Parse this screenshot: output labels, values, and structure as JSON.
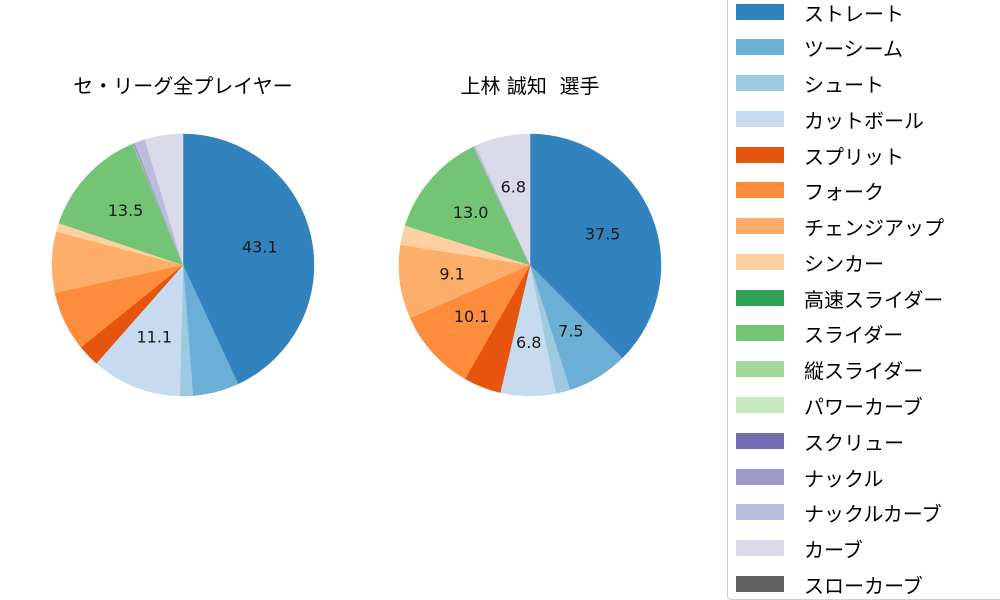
{
  "chart_data": [
    {
      "type": "pie",
      "title": "セ・リーグ全プレイヤー",
      "start_angle_deg": 90,
      "direction": "clockwise",
      "center": [
        183,
        265
      ],
      "radius": 131,
      "slices": [
        {
          "name": "ストレート",
          "value": 43.1,
          "label": "43.1"
        },
        {
          "name": "ツーシーム",
          "value": 5.7,
          "label": null
        },
        {
          "name": "シュート",
          "value": 1.6,
          "label": null
        },
        {
          "name": "カットボール",
          "value": 11.1,
          "label": "11.1"
        },
        {
          "name": "スプリット",
          "value": 2.7,
          "label": null
        },
        {
          "name": "フォーク",
          "value": 7.4,
          "label": null
        },
        {
          "name": "チェンジアップ",
          "value": 7.5,
          "label": null
        },
        {
          "name": "シンカー",
          "value": 1.1,
          "label": null
        },
        {
          "name": "高速スライダー",
          "value": 0.0,
          "label": null
        },
        {
          "name": "スライダー",
          "value": 13.5,
          "label": "13.5"
        },
        {
          "name": "縦スライダー",
          "value": 0.1,
          "label": null
        },
        {
          "name": "パワーカーブ",
          "value": 0.0,
          "label": null
        },
        {
          "name": "スクリュー",
          "value": 0.0,
          "label": null
        },
        {
          "name": "ナックル",
          "value": 0.2,
          "label": null
        },
        {
          "name": "ナックルカーブ",
          "value": 1.3,
          "label": null
        },
        {
          "name": "カーブ",
          "value": 4.7,
          "label": null
        },
        {
          "name": "スローカーブ",
          "value": 0.0,
          "label": null
        }
      ]
    },
    {
      "type": "pie",
      "title": "上林 誠知  選手",
      "start_angle_deg": 90,
      "direction": "clockwise",
      "center": [
        530,
        265
      ],
      "radius": 131,
      "slices": [
        {
          "name": "ストレート",
          "value": 37.5,
          "label": "37.5"
        },
        {
          "name": "ツーシーム",
          "value": 7.5,
          "label": "7.5"
        },
        {
          "name": "シュート",
          "value": 1.8,
          "label": null
        },
        {
          "name": "カットボール",
          "value": 6.8,
          "label": "6.8"
        },
        {
          "name": "スプリット",
          "value": 4.6,
          "label": null
        },
        {
          "name": "フォーク",
          "value": 10.1,
          "label": "10.1"
        },
        {
          "name": "チェンジアップ",
          "value": 9.1,
          "label": "9.1"
        },
        {
          "name": "シンカー",
          "value": 2.4,
          "label": null
        },
        {
          "name": "高速スライダー",
          "value": 0.0,
          "label": null
        },
        {
          "name": "スライダー",
          "value": 13.0,
          "label": "13.0"
        },
        {
          "name": "縦スライダー",
          "value": 0.0,
          "label": null
        },
        {
          "name": "パワーカーブ",
          "value": 0.0,
          "label": null
        },
        {
          "name": "スクリュー",
          "value": 0.0,
          "label": null
        },
        {
          "name": "ナックル",
          "value": 0.0,
          "label": null
        },
        {
          "name": "ナックルカーブ",
          "value": 0.3,
          "label": null
        },
        {
          "name": "カーブ",
          "value": 6.8,
          "label": "6.8"
        },
        {
          "name": "スローカーブ",
          "value": 0.0,
          "label": null
        }
      ]
    }
  ],
  "legend": {
    "position": "right",
    "items": [
      {
        "label": "ストレート",
        "color": "#3182bd"
      },
      {
        "label": "ツーシーム",
        "color": "#6baed6"
      },
      {
        "label": "シュート",
        "color": "#9ecae1"
      },
      {
        "label": "カットボール",
        "color": "#c6dbef"
      },
      {
        "label": "スプリット",
        "color": "#e6550d"
      },
      {
        "label": "フォーク",
        "color": "#fd8d3c"
      },
      {
        "label": "チェンジアップ",
        "color": "#fdae6b"
      },
      {
        "label": "シンカー",
        "color": "#fdd0a2"
      },
      {
        "label": "高速スライダー",
        "color": "#31a354"
      },
      {
        "label": "スライダー",
        "color": "#74c476"
      },
      {
        "label": "縦スライダー",
        "color": "#a1d99b"
      },
      {
        "label": "パワーカーブ",
        "color": "#c7e9c0"
      },
      {
        "label": "スクリュー",
        "color": "#756bb1"
      },
      {
        "label": "ナックル",
        "color": "#9e9ac8"
      },
      {
        "label": "ナックルカーブ",
        "color": "#bcbddc"
      },
      {
        "label": "カーブ",
        "color": "#dadaeb"
      },
      {
        "label": "スローカーブ",
        "color": "#636363"
      }
    ]
  }
}
